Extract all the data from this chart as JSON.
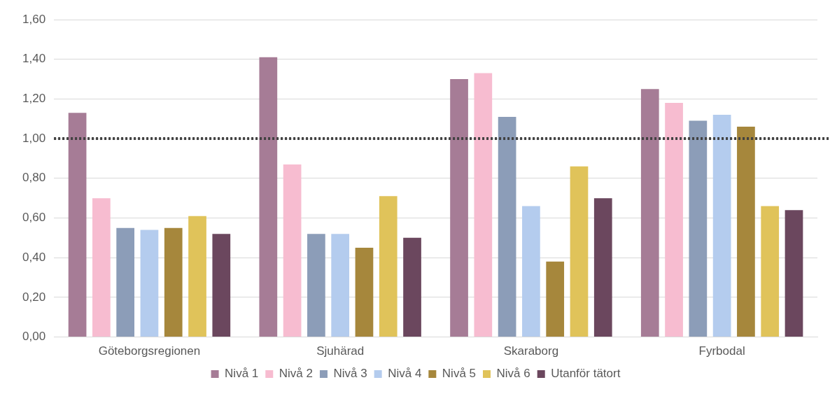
{
  "chart_data": {
    "type": "bar",
    "categories": [
      "Göteborgsregionen",
      "Sjuhärad",
      "Skaraborg",
      "Fyrbodal"
    ],
    "series": [
      {
        "name": "Nivå 1",
        "color": "#a67c96",
        "values": [
          1.13,
          1.41,
          1.3,
          1.25
        ]
      },
      {
        "name": "Nivå 2",
        "color": "#f7bcd0",
        "values": [
          0.7,
          0.87,
          1.33,
          1.18
        ]
      },
      {
        "name": "Nivå 3",
        "color": "#8c9db8",
        "values": [
          0.55,
          0.52,
          1.11,
          1.09
        ]
      },
      {
        "name": "Nivå 4",
        "color": "#b4ccee",
        "values": [
          0.54,
          0.52,
          0.66,
          1.12
        ]
      },
      {
        "name": "Nivå 5",
        "color": "#a6873c",
        "values": [
          0.55,
          0.45,
          0.38,
          1.06
        ]
      },
      {
        "name": "Nivå 6",
        "color": "#e0c35a",
        "values": [
          0.61,
          0.71,
          0.86,
          0.66
        ]
      },
      {
        "name": "Utanför tätort",
        "color": "#6b475e",
        "values": [
          0.52,
          0.5,
          0.7,
          0.64
        ]
      }
    ],
    "ylim": [
      0,
      1.6
    ],
    "yticks": [
      {
        "value": 0,
        "label": "0,00"
      },
      {
        "value": 0.2,
        "label": "0,20"
      },
      {
        "value": 0.4,
        "label": "0,40"
      },
      {
        "value": 0.6,
        "label": "0,60"
      },
      {
        "value": 0.8,
        "label": "0,80"
      },
      {
        "value": 1,
        "label": "1,00"
      },
      {
        "value": 1.2,
        "label": "1,20"
      },
      {
        "value": 1.4,
        "label": "1,40"
      },
      {
        "value": 1.6,
        "label": "1,60"
      }
    ],
    "grid": "y",
    "legend": "bottom",
    "ref_lines": [
      {
        "axis": "y",
        "value": 1,
        "color": "#404040",
        "line_style": "dotted"
      }
    ]
  }
}
